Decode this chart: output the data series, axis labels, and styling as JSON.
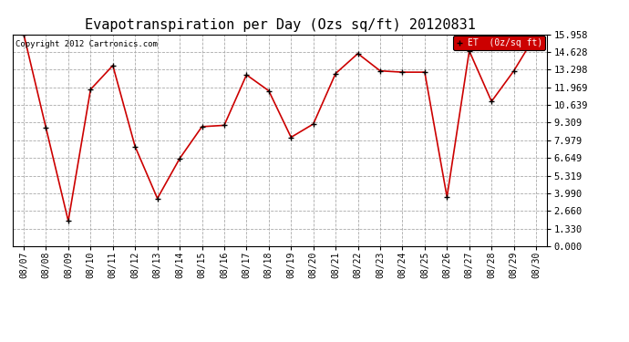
{
  "title": "Evapotranspiration per Day (Ozs sq/ft) 20120831",
  "copyright_text": "Copyright 2012 Cartronics.com",
  "legend_label": "ET  (0z/sq ft)",
  "dates": [
    "08/07",
    "08/08",
    "08/09",
    "08/10",
    "08/11",
    "08/12",
    "08/13",
    "08/14",
    "08/15",
    "08/16",
    "08/17",
    "08/18",
    "08/19",
    "08/20",
    "08/21",
    "08/22",
    "08/23",
    "08/24",
    "08/25",
    "08/26",
    "08/27",
    "08/28",
    "08/29",
    "08/30"
  ],
  "values": [
    15.958,
    8.9,
    1.9,
    11.8,
    13.6,
    7.5,
    3.6,
    6.6,
    9.0,
    9.1,
    12.9,
    11.7,
    8.2,
    9.2,
    13.0,
    14.5,
    13.2,
    13.1,
    13.1,
    3.7,
    14.7,
    10.9,
    13.2,
    15.958
  ],
  "yticks": [
    0.0,
    1.33,
    2.66,
    3.99,
    5.319,
    6.649,
    7.979,
    9.309,
    10.639,
    11.969,
    13.298,
    14.628,
    15.958
  ],
  "ymax": 15.958,
  "ymin": 0.0,
  "line_color": "#cc0000",
  "marker_color": "#000000",
  "bg_color": "#ffffff",
  "grid_color": "#aaaaaa",
  "legend_bg": "#cc0000",
  "legend_text_color": "#ffffff",
  "title_fontsize": 11,
  "copyright_fontsize": 6.5,
  "tick_fontsize": 7,
  "ytick_fontsize": 7.5
}
